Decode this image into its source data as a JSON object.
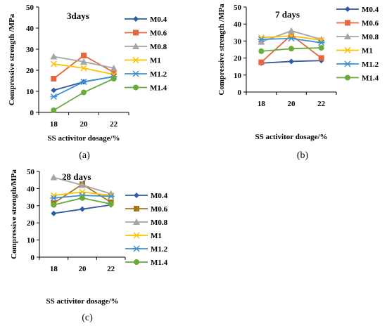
{
  "colors": {
    "M0.4": "#2e5aa8",
    "M0.6": "#e8663d",
    "M0.8": "#a5a5a5",
    "M1": "#ffc000",
    "M1.2": "#3f8fd2",
    "M1.4": "#6aab3c",
    "M0.6_c": "#a5761e"
  },
  "chart_data": [
    {
      "type": "line",
      "title": "3days",
      "caption": "(a)",
      "xlabel": "SS activitor dosage/%",
      "ylabel": "Compressive strength /MPa",
      "categories": [
        "18",
        "20",
        "22"
      ],
      "ylim": [
        0,
        50
      ],
      "yticks": [
        "0",
        "10",
        "20",
        "30",
        "40",
        "50"
      ],
      "legend_position": "right",
      "series": [
        {
          "name": "M0.4",
          "values": [
            10.5,
            14.5,
            17
          ],
          "marker": "diamond"
        },
        {
          "name": "M0.6",
          "values": [
            16,
            27,
            19
          ],
          "marker": "square"
        },
        {
          "name": "M0.8",
          "values": [
            26.5,
            24,
            21
          ],
          "marker": "triangle"
        },
        {
          "name": "M1",
          "values": [
            23,
            21,
            18
          ],
          "marker": "x"
        },
        {
          "name": "M1.2",
          "values": [
            7.5,
            14.5,
            17
          ],
          "marker": "star"
        },
        {
          "name": "M1.4",
          "values": [
            1,
            9.5,
            16
          ],
          "marker": "circle"
        }
      ]
    },
    {
      "type": "line",
      "title": "7 days",
      "caption": "(b)",
      "xlabel": "SS activitor dosage/%",
      "ylabel": "Compressive strength /MPa",
      "categories": [
        "18",
        "20",
        "22"
      ],
      "ylim": [
        0,
        50
      ],
      "yticks": [
        "0",
        "10",
        "20",
        "30",
        "40",
        "50"
      ],
      "legend_position": "right",
      "series": [
        {
          "name": "M0.4",
          "values": [
            17,
            18,
            18.5
          ],
          "marker": "diamond"
        },
        {
          "name": "M0.6",
          "values": [
            17.5,
            33.5,
            20
          ],
          "marker": "square"
        },
        {
          "name": "M0.8",
          "values": [
            29.5,
            36,
            31
          ],
          "marker": "triangle"
        },
        {
          "name": "M1",
          "values": [
            32,
            33,
            30.5
          ],
          "marker": "x"
        },
        {
          "name": "M1.2",
          "values": [
            31,
            31.5,
            29
          ],
          "marker": "star"
        },
        {
          "name": "M1.4",
          "values": [
            24,
            25.5,
            26
          ],
          "marker": "circle"
        }
      ]
    },
    {
      "type": "line",
      "title": "28 days",
      "caption": "(c)",
      "xlabel": "SS activitor dosage/%",
      "ylabel": "Compressive strength/MPa",
      "categories": [
        "18",
        "20",
        "22"
      ],
      "ylim": [
        0,
        50
      ],
      "yticks": [
        "0",
        "10",
        "20",
        "30",
        "40",
        "50"
      ],
      "legend_position": "right",
      "series": [
        {
          "name": "M0.4",
          "values": [
            25.5,
            28,
            30.5
          ],
          "marker": "diamond"
        },
        {
          "name": "M0.6",
          "values": [
            31.5,
            42.5,
            32
          ],
          "marker": "square"
        },
        {
          "name": "M0.8",
          "values": [
            46.5,
            42,
            37
          ],
          "marker": "triangle"
        },
        {
          "name": "M1",
          "values": [
            36,
            38,
            36
          ],
          "marker": "x"
        },
        {
          "name": "M1.2",
          "values": [
            34.5,
            36,
            35.5
          ],
          "marker": "star"
        },
        {
          "name": "M1.4",
          "values": [
            30.5,
            34.5,
            31
          ],
          "marker": "circle"
        }
      ]
    }
  ]
}
